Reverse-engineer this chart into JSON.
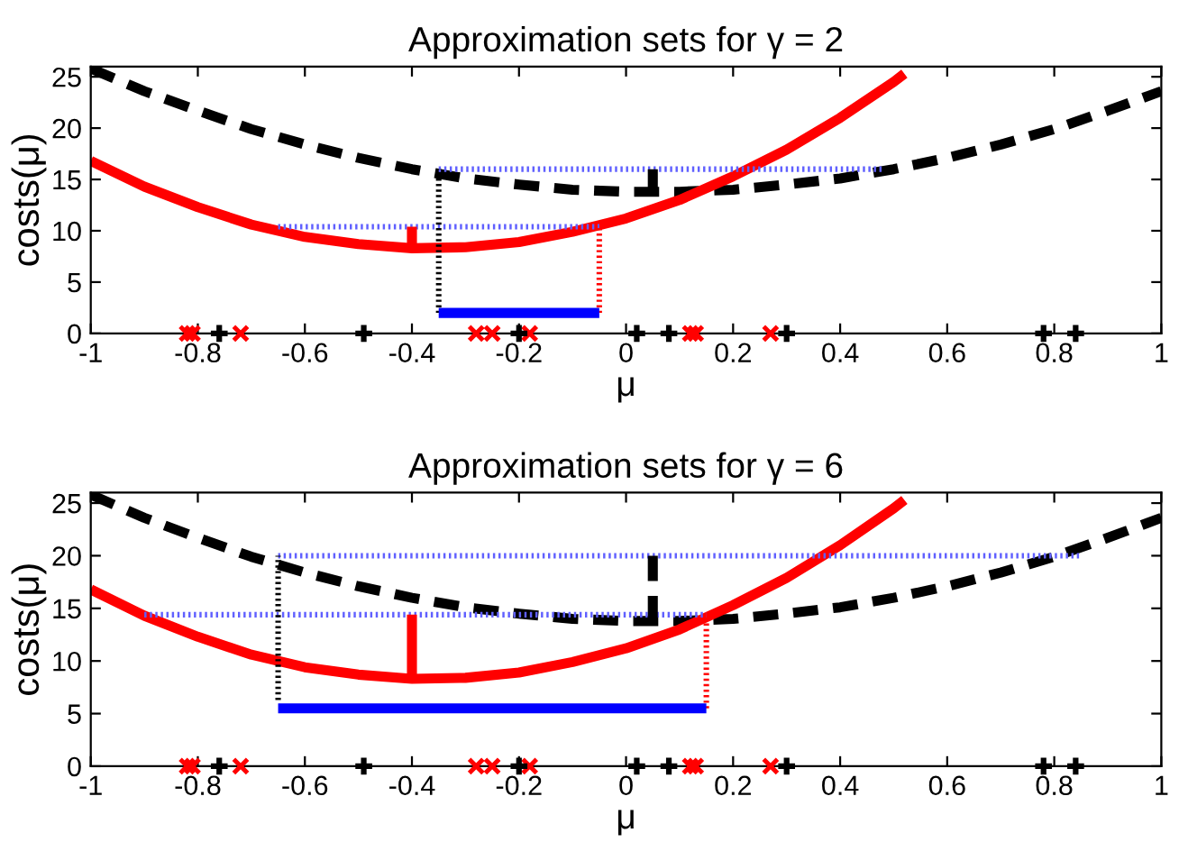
{
  "chart_data": [
    {
      "type": "line",
      "title": "Approximation sets for γ = 2",
      "xlabel": "μ",
      "ylabel": "costs(μ)",
      "xlim": [
        -1,
        1
      ],
      "ylim": [
        0,
        26
      ],
      "xticks": [
        -1,
        -0.8,
        -0.6,
        -0.4,
        -0.2,
        0,
        0.2,
        0.4,
        0.6,
        0.8,
        1
      ],
      "yticks": [
        0,
        5,
        10,
        15,
        20,
        25
      ],
      "grid": false,
      "legend": false,
      "series": [
        {
          "color": "#000000",
          "line_style": "dashed",
          "x": [
            -1,
            -0.9,
            -0.8,
            -0.7,
            -0.6,
            -0.5,
            -0.4,
            -0.3,
            -0.2,
            -0.1,
            0,
            0.1,
            0.2,
            0.3,
            0.4,
            0.5,
            0.6,
            0.7,
            0.8,
            0.9,
            1
          ],
          "values": [
            25.8,
            23.6,
            21.7,
            19.9,
            18.4,
            17.1,
            16.0,
            15.1,
            14.5,
            14.0,
            13.8,
            13.8,
            14.0,
            14.5,
            15.1,
            16.0,
            17.1,
            18.4,
            19.9,
            21.7,
            23.6
          ]
        },
        {
          "color": "#ff0000",
          "line_style": "solid",
          "x": [
            -1,
            -0.9,
            -0.8,
            -0.7,
            -0.6,
            -0.5,
            -0.4,
            -0.3,
            -0.2,
            -0.1,
            0,
            0.1,
            0.2,
            0.3,
            0.4,
            0.5,
            0.52
          ],
          "values": [
            16.8,
            14.3,
            12.3,
            10.6,
            9.4,
            8.7,
            8.3,
            8.4,
            8.9,
            9.9,
            11.2,
            13.0,
            15.3,
            17.9,
            21.0,
            24.5,
            25.3
          ]
        },
        {
          "color": "#6060ff",
          "line_style": "dotted",
          "x": [
            -0.35,
            0.48
          ],
          "values": [
            16,
            16
          ]
        },
        {
          "color": "#6060ff",
          "line_style": "dotted",
          "x": [
            -0.65,
            -0.05
          ],
          "values": [
            10.4,
            10.4
          ]
        },
        {
          "color": "#000000",
          "line_style": "dotted",
          "x": [
            -0.35,
            -0.35
          ],
          "values": [
            2,
            16
          ]
        },
        {
          "color": "#ff0000",
          "line_style": "dotted",
          "x": [
            -0.05,
            -0.05
          ],
          "values": [
            2,
            10.4
          ]
        },
        {
          "color": "#ff0000",
          "line_style": "solid",
          "x": [
            -0.4,
            -0.4
          ],
          "values": [
            8.3,
            10.4
          ]
        },
        {
          "color": "#000000",
          "line_style": "solid",
          "x": [
            0.05,
            0.05
          ],
          "values": [
            13.8,
            16
          ]
        },
        {
          "color": "#0000ff",
          "line_style": "solid",
          "x": [
            -0.35,
            -0.05
          ],
          "values": [
            2,
            2
          ]
        },
        {
          "type": "scatter",
          "marker": "cross",
          "color": "#ff0000",
          "x": [
            -0.82,
            -0.81,
            -0.72,
            -0.28,
            -0.25,
            -0.18,
            0.12,
            0.13,
            0.27
          ],
          "values": [
            0,
            0,
            0,
            0,
            0,
            0,
            0,
            0,
            0
          ]
        },
        {
          "type": "scatter",
          "marker": "plus",
          "color": "#000000",
          "x": [
            -0.76,
            -0.49,
            -0.2,
            0.02,
            0.08,
            0.3,
            0.78,
            0.84
          ],
          "values": [
            0,
            0,
            0,
            0,
            0,
            0,
            0,
            0
          ]
        }
      ]
    },
    {
      "type": "line",
      "title": "Approximation sets for γ = 6",
      "xlabel": "μ",
      "ylabel": "costs(μ)",
      "xlim": [
        -1,
        1
      ],
      "ylim": [
        0,
        26
      ],
      "xticks": [
        -1,
        -0.8,
        -0.6,
        -0.4,
        -0.2,
        0,
        0.2,
        0.4,
        0.6,
        0.8,
        1
      ],
      "yticks": [
        0,
        5,
        10,
        15,
        20,
        25
      ],
      "grid": false,
      "legend": false,
      "series": [
        {
          "color": "#000000",
          "line_style": "dashed",
          "x": [
            -1,
            -0.9,
            -0.8,
            -0.7,
            -0.6,
            -0.5,
            -0.4,
            -0.3,
            -0.2,
            -0.1,
            0,
            0.1,
            0.2,
            0.3,
            0.4,
            0.5,
            0.6,
            0.7,
            0.8,
            0.9,
            1
          ],
          "values": [
            25.8,
            23.6,
            21.7,
            19.9,
            18.4,
            17.1,
            16.0,
            15.1,
            14.5,
            14.0,
            13.8,
            13.8,
            14.0,
            14.5,
            15.1,
            16.0,
            17.1,
            18.4,
            19.9,
            21.7,
            23.6
          ]
        },
        {
          "color": "#ff0000",
          "line_style": "solid",
          "x": [
            -1,
            -0.9,
            -0.8,
            -0.7,
            -0.6,
            -0.5,
            -0.4,
            -0.3,
            -0.2,
            -0.1,
            0,
            0.1,
            0.2,
            0.3,
            0.4,
            0.5,
            0.52
          ],
          "values": [
            16.8,
            14.3,
            12.3,
            10.6,
            9.4,
            8.7,
            8.3,
            8.4,
            8.9,
            9.9,
            11.2,
            13.0,
            15.3,
            17.9,
            21.0,
            24.5,
            25.3
          ]
        },
        {
          "color": "#6060ff",
          "line_style": "dotted",
          "x": [
            -0.65,
            0.85
          ],
          "values": [
            20,
            20
          ]
        },
        {
          "color": "#6060ff",
          "line_style": "dotted",
          "x": [
            -0.9,
            0.15
          ],
          "values": [
            14.4,
            14.4
          ]
        },
        {
          "color": "#000000",
          "line_style": "dotted",
          "x": [
            -0.65,
            -0.65
          ],
          "values": [
            6.3,
            20
          ]
        },
        {
          "color": "#ff0000",
          "line_style": "dotted",
          "x": [
            0.15,
            0.15
          ],
          "values": [
            5.5,
            14.4
          ]
        },
        {
          "color": "#ff0000",
          "line_style": "solid",
          "x": [
            -0.4,
            -0.4
          ],
          "values": [
            8.3,
            14.4
          ]
        },
        {
          "color": "#000000",
          "line_style": "dashed",
          "x": [
            0.05,
            0.05
          ],
          "values": [
            13.8,
            20
          ]
        },
        {
          "color": "#0000ff",
          "line_style": "solid",
          "x": [
            -0.65,
            0.15
          ],
          "values": [
            5.5,
            5.5
          ]
        },
        {
          "type": "scatter",
          "marker": "cross",
          "color": "#ff0000",
          "x": [
            -0.82,
            -0.81,
            -0.72,
            -0.28,
            -0.25,
            -0.18,
            0.12,
            0.13,
            0.27
          ],
          "values": [
            0,
            0,
            0,
            0,
            0,
            0,
            0,
            0,
            0
          ]
        },
        {
          "type": "scatter",
          "marker": "plus",
          "color": "#000000",
          "x": [
            -0.76,
            -0.49,
            -0.2,
            0.02,
            0.08,
            0.3,
            0.78,
            0.84
          ],
          "values": [
            0,
            0,
            0,
            0,
            0,
            0,
            0,
            0
          ]
        }
      ]
    }
  ]
}
